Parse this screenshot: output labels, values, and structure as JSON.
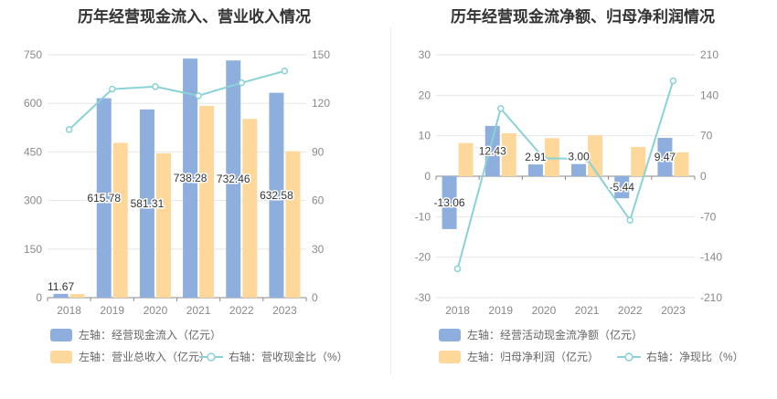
{
  "colors": {
    "bar_primary": "#8eaedd",
    "bar_secondary": "#fdd89a",
    "line": "#8ad2d6",
    "axis_text": "#888888",
    "grid": "#e6e6e6",
    "label": "#333333"
  },
  "chart_data": [
    {
      "type": "bar",
      "title": "历年经营现金流入、营业收入情况",
      "categories": [
        "2018",
        "2019",
        "2020",
        "2021",
        "2022",
        "2023"
      ],
      "y_left": {
        "min": 0,
        "max": 750,
        "ticks": [
          "0",
          "150",
          "300",
          "450",
          "600",
          "750"
        ]
      },
      "y_right": {
        "min": 0,
        "max": 150,
        "ticks": [
          "0",
          "30",
          "60",
          "90",
          "120",
          "150"
        ]
      },
      "series": [
        {
          "name": "左轴：经营现金流入（亿元）",
          "axis": "left",
          "kind": "bar",
          "values": [
            11.67,
            615.78,
            581.31,
            738.28,
            732.46,
            632.58
          ],
          "labels": [
            "11.67",
            "615.78",
            "581.31",
            "738.28",
            "732.46",
            "632.58"
          ]
        },
        {
          "name": "左轴：营业总收入（亿元）",
          "axis": "left",
          "kind": "bar",
          "values": [
            11,
            478,
            446,
            592,
            552,
            452
          ]
        },
        {
          "name": "右轴：营收现金比（%）",
          "axis": "right",
          "kind": "line",
          "values": [
            103.8,
            128.8,
            130.3,
            124.7,
            132.7,
            140.0
          ]
        }
      ],
      "legend_placement": "bottom-left"
    },
    {
      "type": "bar",
      "title": "历年经营现金流净额、归母净利润情况",
      "categories": [
        "2018",
        "2019",
        "2020",
        "2021",
        "2022",
        "2023"
      ],
      "y_left": {
        "min": -30,
        "max": 30,
        "ticks": [
          "-30",
          "-20",
          "-10",
          "0",
          "10",
          "20",
          "30"
        ]
      },
      "y_right": {
        "min": -210,
        "max": 210,
        "ticks": [
          "-210",
          "-140",
          "-70",
          "0",
          "70",
          "140",
          "210"
        ]
      },
      "series": [
        {
          "name": "左轴：经营活动现金流净额（亿元）",
          "axis": "left",
          "kind": "bar",
          "values": [
            -13.06,
            12.43,
            2.91,
            3.0,
            -5.44,
            9.47
          ],
          "labels": [
            "-13.06",
            "12.43",
            "2.91",
            "3.00",
            "-5.44",
            "9.47"
          ]
        },
        {
          "name": "左轴：归母净利润（亿元）",
          "axis": "left",
          "kind": "bar",
          "values": [
            8.2,
            10.6,
            9.4,
            10.1,
            7.2,
            5.9
          ]
        },
        {
          "name": "右轴：净现比（%）",
          "axis": "right",
          "kind": "line",
          "values": [
            -160,
            117,
            31,
            30,
            -76,
            165
          ]
        }
      ],
      "legend_placement": "bottom-left"
    }
  ]
}
